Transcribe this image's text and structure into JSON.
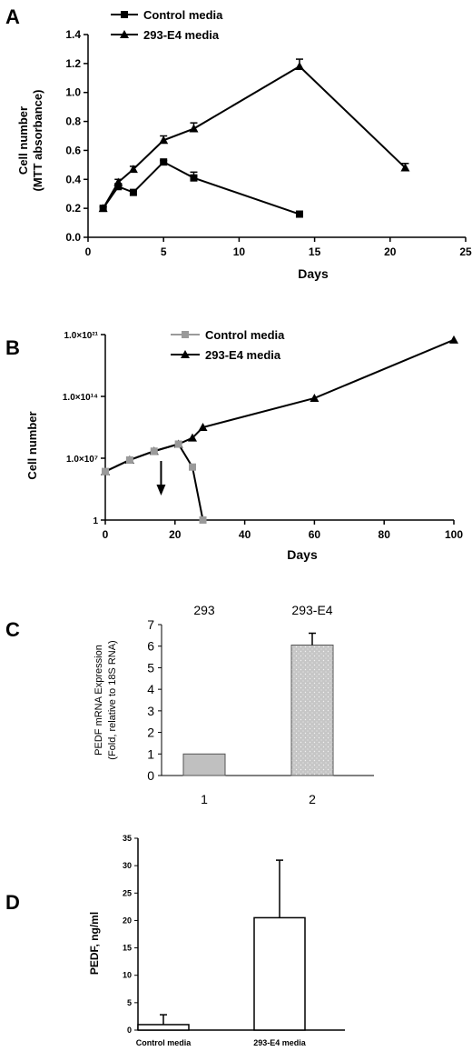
{
  "chart_data": [
    {
      "panel": "A",
      "type": "line",
      "xlabel": "Days",
      "ylabel": "Cell number (MTT absorbance)",
      "xlim": [
        0,
        25
      ],
      "ylim": [
        0,
        1.4
      ],
      "xticks": [
        0,
        5,
        10,
        15,
        20,
        25
      ],
      "yticks": [
        0.0,
        0.2,
        0.4,
        0.6,
        0.8,
        1.0,
        1.2,
        1.4
      ],
      "legend": "top-left",
      "series": [
        {
          "name": "Control media",
          "marker": "square",
          "color": "#000000",
          "x": [
            1,
            2,
            3,
            5,
            7,
            14
          ],
          "y": [
            0.2,
            0.35,
            0.31,
            0.52,
            0.41,
            0.16
          ],
          "err": [
            0.01,
            0.02,
            0.01,
            0.01,
            0.04,
            0.01
          ]
        },
        {
          "name": "293-E4 media",
          "marker": "triangle",
          "color": "#000000",
          "x": [
            1,
            2,
            3,
            5,
            7,
            14,
            21
          ],
          "y": [
            0.2,
            0.38,
            0.47,
            0.67,
            0.75,
            1.18,
            0.48
          ],
          "err": [
            0.01,
            0.02,
            0.02,
            0.03,
            0.04,
            0.05,
            0.03
          ]
        }
      ]
    },
    {
      "panel": "B",
      "type": "line",
      "xlabel": "Days",
      "ylabel": "Cell number",
      "xlim": [
        0,
        100
      ],
      "xticks": [
        0,
        20,
        40,
        60,
        80,
        100
      ],
      "ytick_labels": [
        "1",
        "1.0×10⁷",
        "1.0×10¹⁴",
        "1.0×10²¹"
      ],
      "ytick_exponents": [
        0,
        7,
        14,
        21
      ],
      "legend": "top-center",
      "arrow_at_day": 16,
      "series": [
        {
          "name": "Control media",
          "marker": "square",
          "color": "#9a9a9a",
          "x": [
            0,
            7,
            14,
            21,
            25,
            28
          ],
          "log10_y": [
            5.5,
            6.8,
            7.8,
            8.6,
            6.0,
            0
          ]
        },
        {
          "name": "293-E4 media",
          "marker": "triangle",
          "color": "#000000",
          "x": [
            0,
            7,
            14,
            21,
            25,
            28,
            60,
            100
          ],
          "log10_y": [
            5.5,
            6.8,
            7.8,
            8.6,
            9.3,
            10.5,
            13.8,
            20.4
          ]
        }
      ]
    },
    {
      "panel": "C",
      "type": "bar",
      "ylabel": "PEDF mRNA Expression (Fold, relative to 18S RNA)",
      "categories": [
        "1",
        "2"
      ],
      "top_labels": [
        "293",
        "293-E4"
      ],
      "values": [
        1.0,
        6.05
      ],
      "err": [
        0,
        0.55
      ],
      "ylim": [
        0,
        7
      ],
      "yticks": [
        0,
        1,
        2,
        3,
        4,
        5,
        6,
        7
      ],
      "bar_color": "#c9c9c9"
    },
    {
      "panel": "D",
      "type": "bar",
      "ylabel": "PEDF, ng/ml",
      "categories": [
        "Control media",
        "293-E4 media"
      ],
      "values": [
        1.0,
        20.5
      ],
      "err": [
        1.8,
        10.5
      ],
      "ylim": [
        0,
        35
      ],
      "yticks": [
        0,
        5,
        10,
        15,
        20,
        25,
        30,
        35
      ],
      "bar_color": "#ffffff"
    }
  ]
}
